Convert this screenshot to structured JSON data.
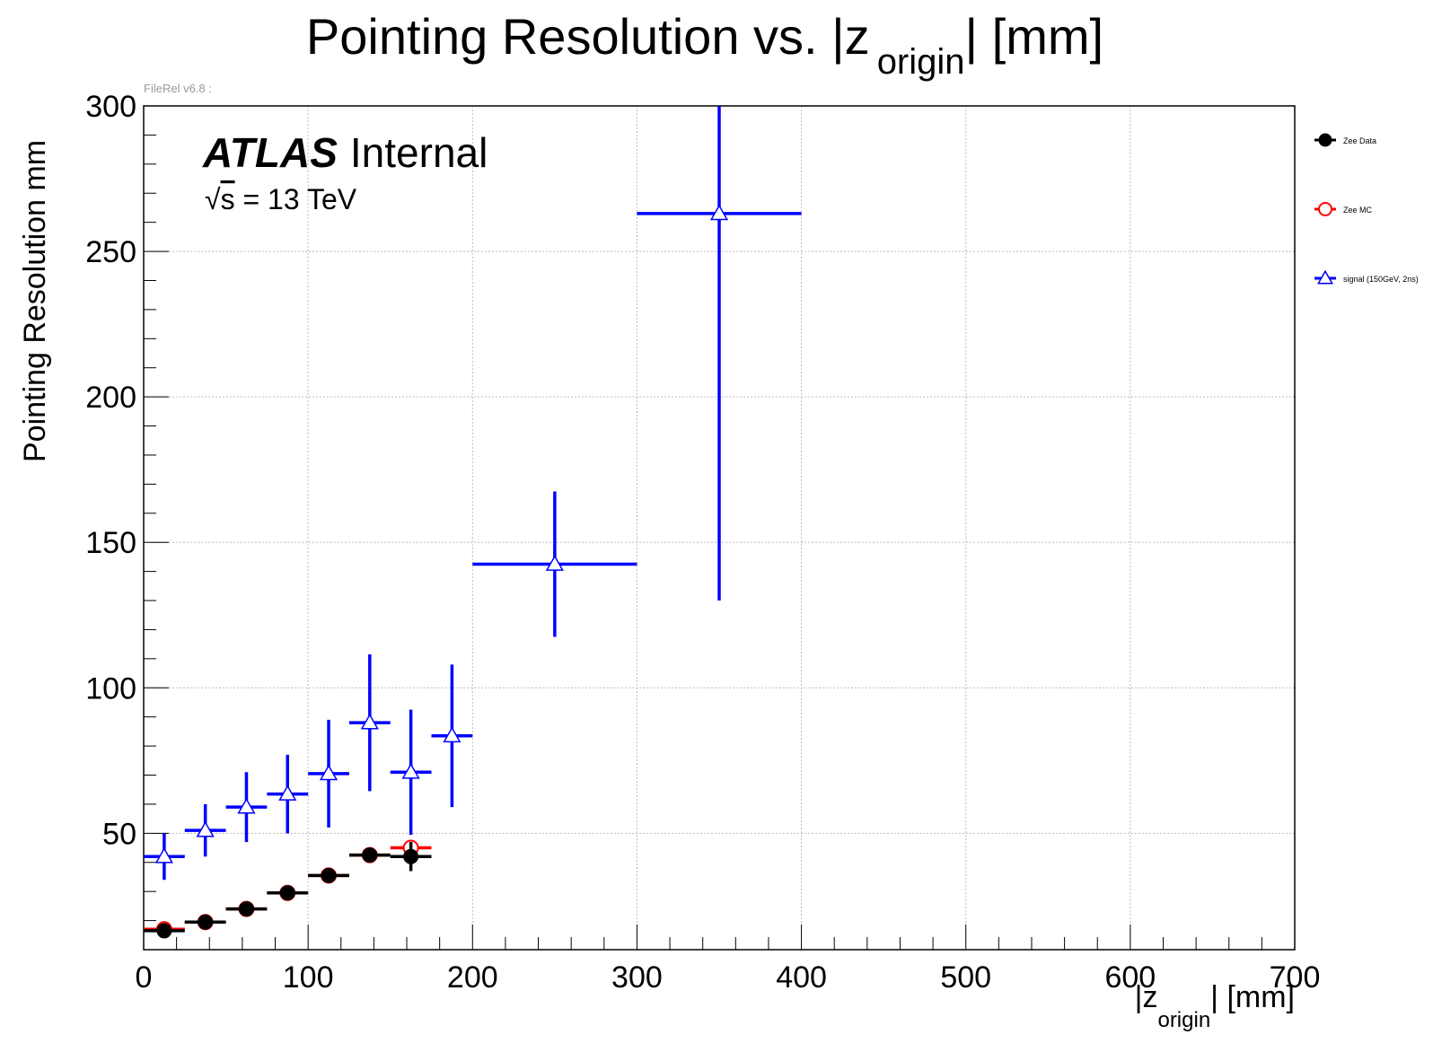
{
  "chart_data": {
    "type": "scatter",
    "title_main": "Pointing Resolution vs. |z",
    "title_sub": "origin",
    "title_tail": "| [mm]",
    "version_label": "FileRel v6.8 :",
    "atlas_label": "ATLAS",
    "atlas_status": "Internal",
    "energy_sqrt": "√",
    "energy_s": "s",
    "energy_value": " = 13 TeV",
    "ylabel": "Pointing Resolution mm",
    "xlabel_main": "|z",
    "xlabel_sub": "origin",
    "xlabel_tail": "| [mm]",
    "xlim": [
      0,
      700
    ],
    "ylim": [
      10,
      300
    ],
    "x_ticks": [
      "0",
      "100",
      "200",
      "300",
      "400",
      "500",
      "600",
      "700"
    ],
    "y_ticks": [
      "50",
      "100",
      "150",
      "200",
      "250",
      "300"
    ],
    "grid": true,
    "legend_position": "right",
    "series": [
      {
        "name": "Zee Data",
        "color": "#000000",
        "marker": "filled-circle",
        "points": [
          {
            "x": 12.5,
            "xerr": 12.5,
            "y": 16.5,
            "yerr": 1.0
          },
          {
            "x": 37.5,
            "xerr": 12.5,
            "y": 19.5,
            "yerr": 1.0
          },
          {
            "x": 62.5,
            "xerr": 12.5,
            "y": 24.0,
            "yerr": 1.0
          },
          {
            "x": 87.5,
            "xerr": 12.5,
            "y": 29.5,
            "yerr": 1.0
          },
          {
            "x": 112.5,
            "xerr": 12.5,
            "y": 35.5,
            "yerr": 1.0
          },
          {
            "x": 137.5,
            "xerr": 12.5,
            "y": 42.5,
            "yerr": 1.5
          },
          {
            "x": 162.5,
            "xerr": 12.5,
            "y": 42.0,
            "yerr": 5.0
          }
        ]
      },
      {
        "name": "Zee MC",
        "color": "#ff0000",
        "marker": "open-circle",
        "points": [
          {
            "x": 12.5,
            "xerr": 12.5,
            "y": 17.0,
            "yerr": 0.5
          },
          {
            "x": 37.5,
            "xerr": 12.5,
            "y": 19.5,
            "yerr": 0.5
          },
          {
            "x": 62.5,
            "xerr": 12.5,
            "y": 24.0,
            "yerr": 0.5
          },
          {
            "x": 87.5,
            "xerr": 12.5,
            "y": 29.5,
            "yerr": 0.5
          },
          {
            "x": 112.5,
            "xerr": 12.5,
            "y": 35.5,
            "yerr": 0.5
          },
          {
            "x": 137.5,
            "xerr": 12.5,
            "y": 42.5,
            "yerr": 0.5
          },
          {
            "x": 162.5,
            "xerr": 12.5,
            "y": 45.0,
            "yerr": 1.0
          }
        ]
      },
      {
        "name": "signal (150GeV, 2ns)",
        "color": "#0000ff",
        "marker": "open-triangle",
        "points": [
          {
            "x": 12.5,
            "xerr": 12.5,
            "y": 42.0,
            "yerr": 8.0
          },
          {
            "x": 37.5,
            "xerr": 12.5,
            "y": 51.0,
            "yerr": 9.0
          },
          {
            "x": 62.5,
            "xerr": 12.5,
            "y": 59.0,
            "yerr": 12.0
          },
          {
            "x": 87.5,
            "xerr": 12.5,
            "y": 63.5,
            "yerr": 13.5
          },
          {
            "x": 112.5,
            "xerr": 12.5,
            "y": 70.5,
            "yerr": 18.5
          },
          {
            "x": 137.5,
            "xerr": 12.5,
            "y": 88.0,
            "yerr": 23.5
          },
          {
            "x": 162.5,
            "xerr": 12.5,
            "y": 71.0,
            "yerr": 21.5
          },
          {
            "x": 187.5,
            "xerr": 12.5,
            "y": 83.5,
            "yerr": 24.5
          },
          {
            "x": 250,
            "xerr": 50,
            "y": 142.5,
            "yerr": 25.0
          },
          {
            "x": 350,
            "xerr": 50,
            "y": 263.0,
            "yerr": 133.0
          }
        ]
      }
    ]
  }
}
